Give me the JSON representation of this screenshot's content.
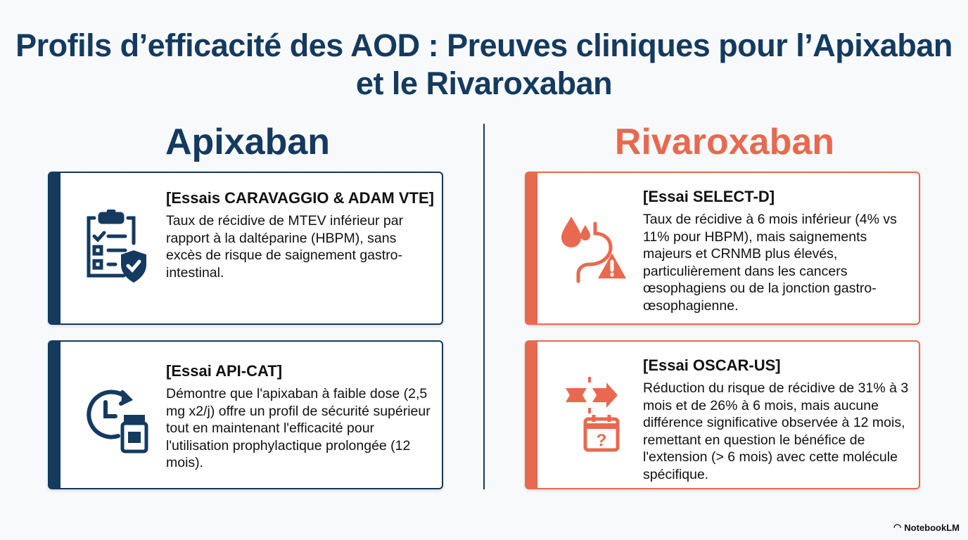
{
  "title": "Profils d’efficacité des AOD : Preuves cliniques pour l’Apixaban et le Rivaroxaban",
  "columns": [
    {
      "heading": "Apixaban",
      "color": "#143a5f",
      "cards": [
        {
          "icon": "clipboard-checklist-shield-icon",
          "title": "[Essais CARAVAGGIO & ADAM VTE]",
          "text": "Taux de récidive de MTEV inférieur par rapport à la daltéparine (HBPM), sans excès de risque de saignement gastro-intestinal."
        },
        {
          "icon": "clock-medicine-vial-icon",
          "title": "[Essai API-CAT]",
          "text": "Démontre que l'apixaban à faible dose (2,5 mg x2/j) offre un profil de sécurité supérieur tout en maintenant l'efficacité pour l'utilisation prophylactique prolongée (12 mois)."
        }
      ]
    },
    {
      "heading": "Rivaroxaban",
      "color": "#e8694f",
      "cards": [
        {
          "icon": "blood-drop-stomach-warning-icon",
          "title": "[Essai SELECT-D]",
          "text": "Taux de récidive à 6 mois inférieur (4% vs 11% pour HBPM), mais saignements majeurs et CRNMB plus élevés, particulièrement dans les cancers œsophagiens ou de la jonction gastro-œsophagienne."
        },
        {
          "icon": "broken-arrow-calendar-question-icon",
          "title": "[Essai OSCAR-US]",
          "text": "Réduction du risque de récidive de 31% à 3 mois et de 26% à 6 mois, mais aucune différence significative observée à 12 mois, remettant en question le bénéfice de l'extension (> 6 mois) avec cette molécule spécifique."
        }
      ]
    }
  ],
  "brand": "NotebookLM"
}
